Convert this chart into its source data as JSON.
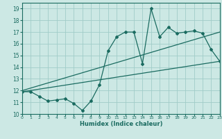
{
  "title": "",
  "xlabel": "Humidex (Indice chaleur)",
  "ylabel": "",
  "bg_color": "#cce8e4",
  "grid_color": "#a0ccc8",
  "line_color": "#1a6b60",
  "xlim": [
    0,
    23
  ],
  "ylim": [
    10,
    19.5
  ],
  "yticks": [
    10,
    11,
    12,
    13,
    14,
    15,
    16,
    17,
    18,
    19
  ],
  "xticks": [
    0,
    1,
    2,
    3,
    4,
    5,
    6,
    7,
    8,
    9,
    10,
    11,
    12,
    13,
    14,
    15,
    16,
    17,
    18,
    19,
    20,
    21,
    22,
    23
  ],
  "jagged_x": [
    0,
    1,
    2,
    3,
    4,
    5,
    6,
    7,
    8,
    9,
    10,
    11,
    12,
    13,
    14,
    15,
    16,
    17,
    18,
    19,
    20,
    21,
    22,
    23
  ],
  "jagged_y": [
    11.9,
    11.9,
    11.5,
    11.1,
    11.2,
    11.3,
    10.9,
    10.3,
    11.1,
    12.5,
    15.4,
    16.6,
    17.0,
    17.0,
    14.3,
    19.0,
    16.6,
    17.4,
    16.9,
    17.0,
    17.1,
    16.9,
    15.5,
    14.5
  ],
  "line1_x": [
    0,
    23
  ],
  "line1_y": [
    11.9,
    14.5
  ],
  "line2_x": [
    0,
    23
  ],
  "line2_y": [
    12.0,
    17.0
  ]
}
